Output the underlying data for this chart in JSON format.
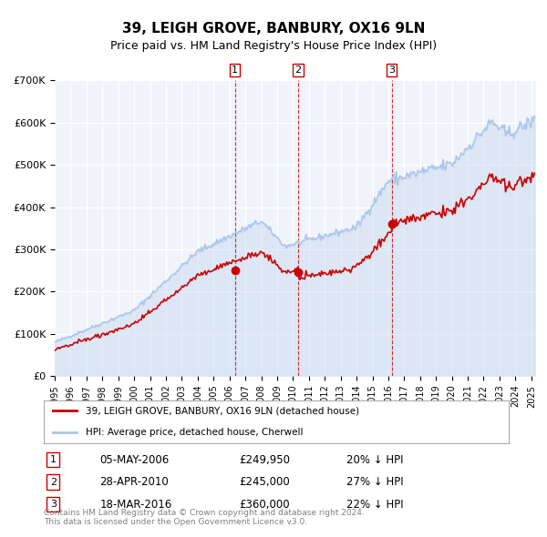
{
  "title": "39, LEIGH GROVE, BANBURY, OX16 9LN",
  "subtitle": "Price paid vs. HM Land Registry's House Price Index (HPI)",
  "hpi_label": "HPI: Average price, detached house, Cherwell",
  "property_label": "39, LEIGH GROVE, BANBURY, OX16 9LN (detached house)",
  "hpi_color": "#aec6e8",
  "property_color": "#cc0000",
  "sale_color": "#cc0000",
  "vline_color": "#cc0000",
  "background_color": "#f0f4fa",
  "plot_bg_color": "#f0f4fa",
  "ylim": [
    0,
    700000
  ],
  "xlim_start": 1995.0,
  "xlim_end": 2025.3,
  "sales": [
    {
      "num": 1,
      "date_dec": 2006.34,
      "price": 249950,
      "hpi_pct": "20% ↓ HPI",
      "date_str": "05-MAY-2006",
      "price_str": "£249,950"
    },
    {
      "num": 2,
      "date_dec": 2010.32,
      "price": 245000,
      "hpi_pct": "27% ↓ HPI",
      "date_str": "28-APR-2010",
      "price_str": "£245,000"
    },
    {
      "num": 3,
      "date_dec": 2016.21,
      "price": 360000,
      "hpi_pct": "22% ↓ HPI",
      "date_str": "18-MAR-2016",
      "price_str": "£360,000"
    }
  ],
  "footer": "Contains HM Land Registry data © Crown copyright and database right 2024.\nThis data is licensed under the Open Government Licence v3.0.",
  "yticks": [
    0,
    100000,
    200000,
    300000,
    400000,
    500000,
    600000,
    700000
  ],
  "ytick_labels": [
    "£0",
    "£100K",
    "£200K",
    "£300K",
    "£400K",
    "£500K",
    "£600K",
    "£700K"
  ]
}
